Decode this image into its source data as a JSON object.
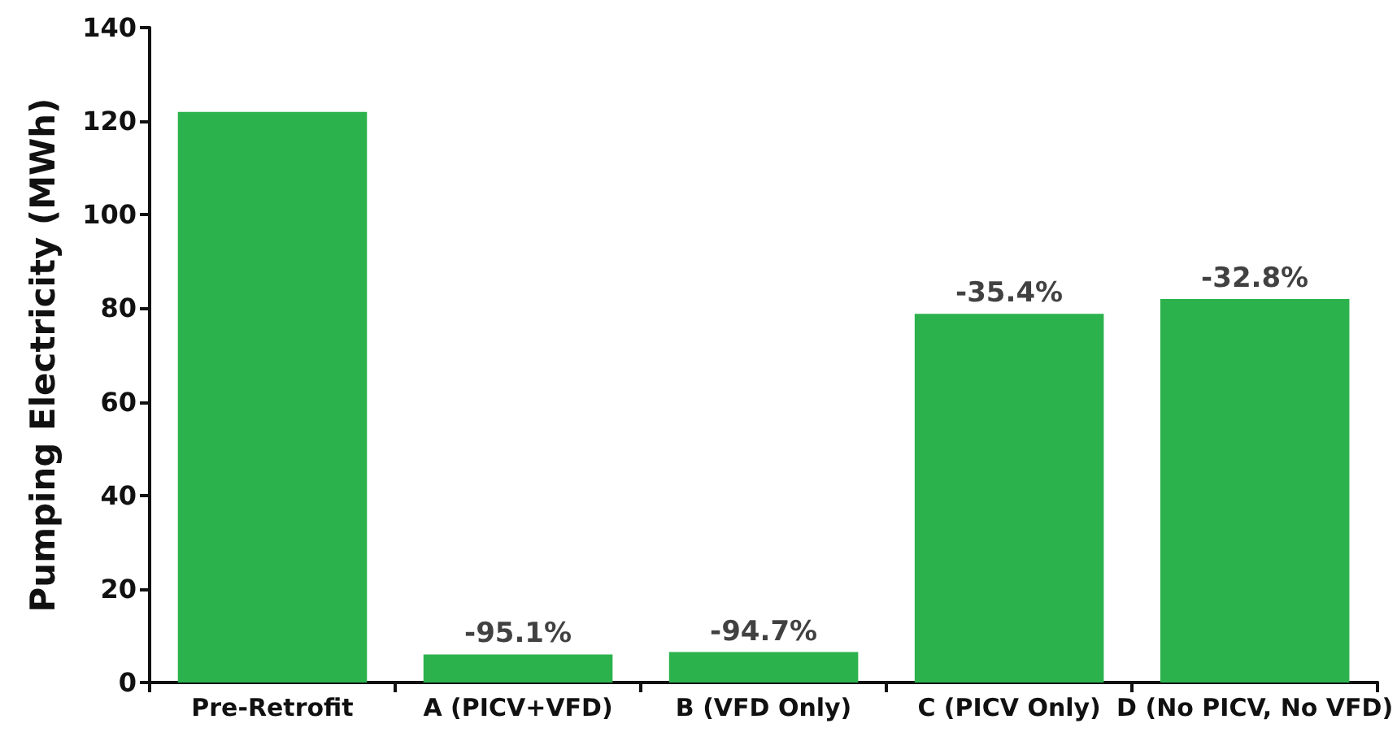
{
  "chart_data": {
    "type": "bar",
    "ylabel": "Pumping Electricity (MWh)",
    "categories": [
      "Pre-Retrofit",
      "A (PICV+VFD)",
      "B (VFD Only)",
      "C (PICV Only)",
      "D (No PICV, No VFD)"
    ],
    "values": [
      122,
      6,
      6.5,
      78.8,
      82
    ],
    "annotations": [
      {
        "text": "-95.1%",
        "x": "A (PICV+VFD)",
        "y": 6
      },
      {
        "text": "-94.7%",
        "x": "B (VFD Only)",
        "y": 6.5
      },
      {
        "text": "-35.4%",
        "x": "C (PICV Only)",
        "y": 78.8
      },
      {
        "text": "-32.8%",
        "x": "D (No PICV, No VFD)",
        "y": 82
      }
    ],
    "color": "#2bb24c",
    "ylim": [
      0,
      140
    ],
    "yticks": [
      0,
      20,
      40,
      60,
      80,
      100,
      120,
      140
    ],
    "grid": false
  }
}
